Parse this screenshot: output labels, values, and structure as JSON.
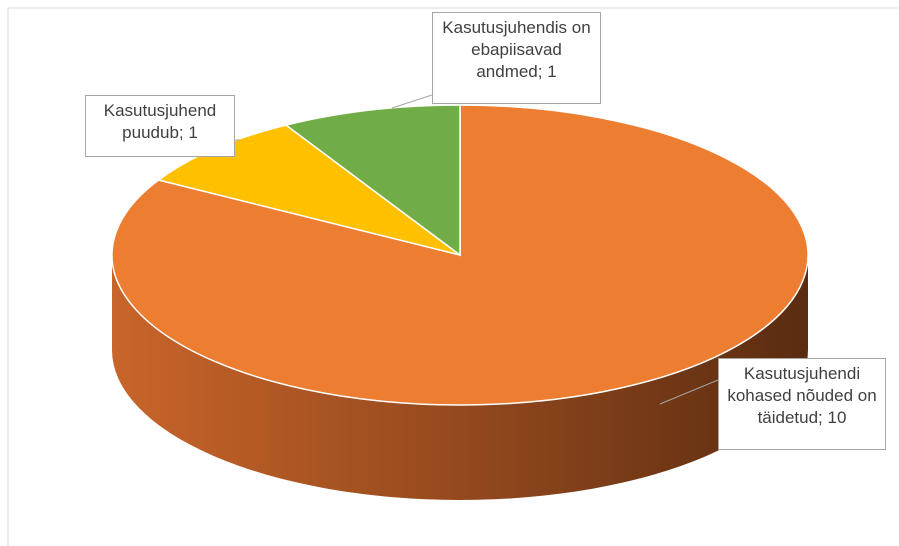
{
  "chart_data": {
    "type": "pie3d",
    "values": [
      10,
      1,
      1
    ],
    "value_labels": [
      "Kasutusjuhendi kohased nõuded on täidetud; 10",
      "Kasutusjuhend puudub; 1",
      "Kasutusjuhendis on ebapiisavad andmed; 1"
    ],
    "colors": [
      "#ED7D31",
      "#FFC000",
      "#70AD47"
    ]
  }
}
